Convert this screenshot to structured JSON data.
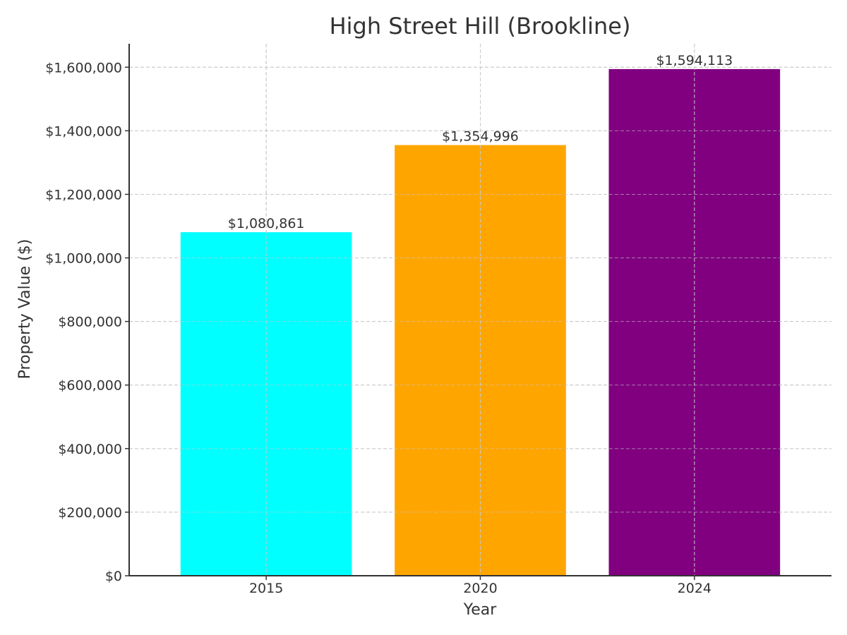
{
  "chart_data": {
    "type": "bar",
    "title": "High Street Hill (Brookline)",
    "xlabel": "Year",
    "ylabel": "Property Value ($)",
    "categories": [
      "2015",
      "2020",
      "2024"
    ],
    "values": [
      1080861,
      1354996,
      1594113
    ],
    "value_labels": [
      "$1,080,861",
      "$1,354,996",
      "$1,594,113"
    ],
    "bar_colors": [
      "#00ffff",
      "#ffa500",
      "#800080"
    ],
    "ylim": [
      0,
      1673819
    ],
    "y_ticks": [
      0,
      200000,
      400000,
      600000,
      800000,
      1000000,
      1200000,
      1400000,
      1600000
    ],
    "y_tick_labels": [
      "$0",
      "$200,000",
      "$400,000",
      "$600,000",
      "$800,000",
      "$1,000,000",
      "$1,200,000",
      "$1,400,000",
      "$1,600,000"
    ],
    "grid": true,
    "grid_style": "dashed",
    "grid_color": "#c8c8c8",
    "axis_color": "#333333",
    "text_color": "#333333"
  }
}
